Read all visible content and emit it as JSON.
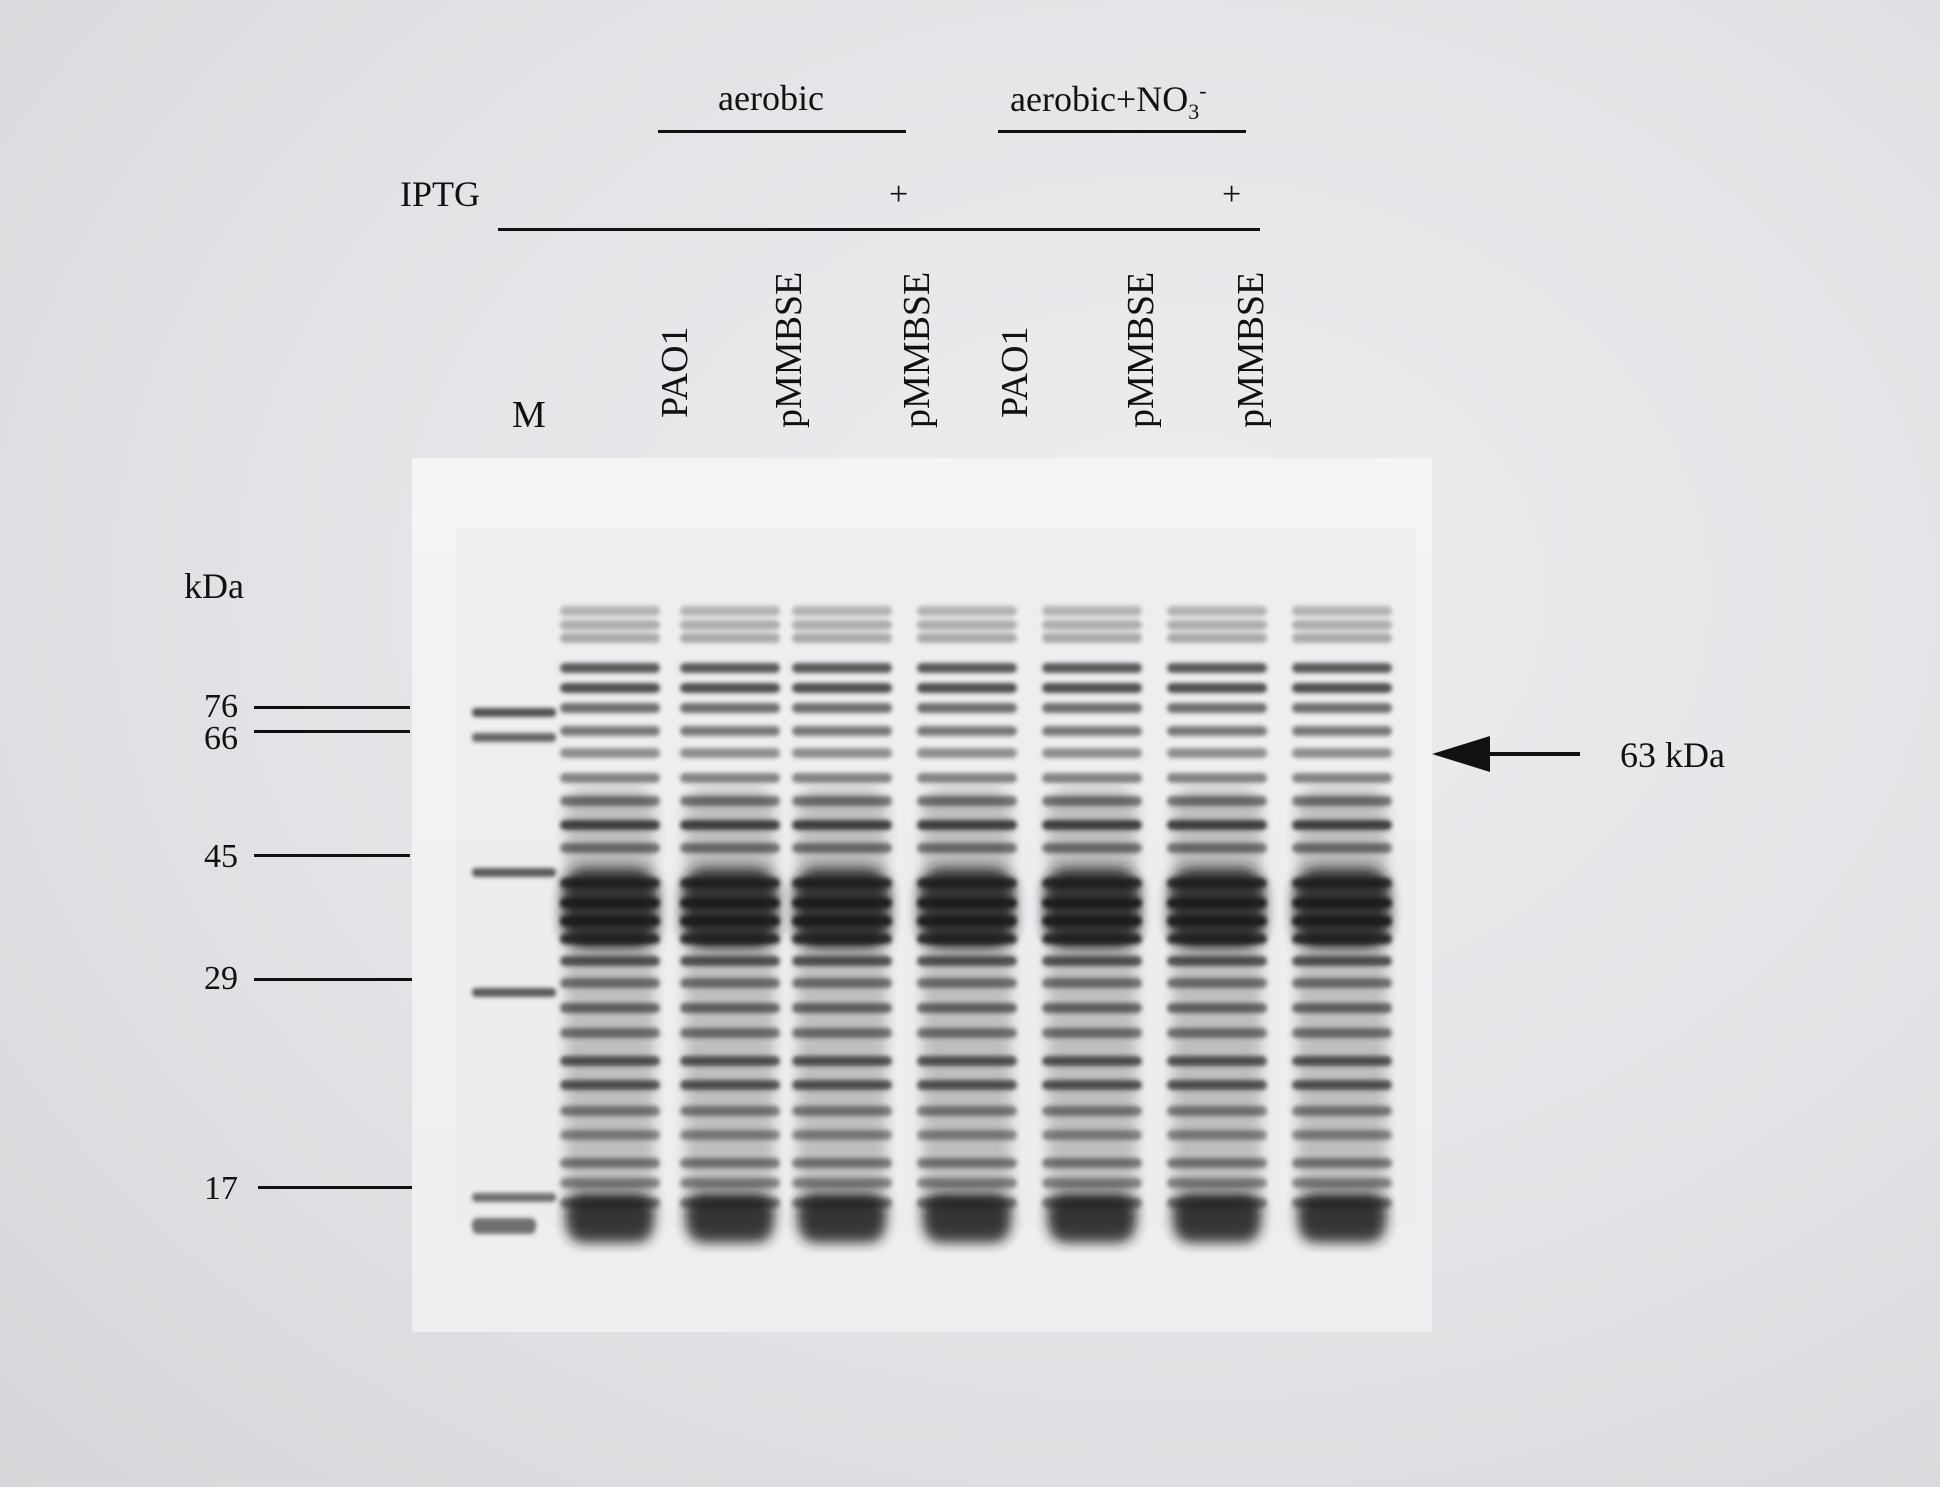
{
  "conditions": [
    {
      "label": "aerobic"
    },
    {
      "label_main": "aerobic+NO",
      "label_sub": "3",
      "label_sup": "-"
    }
  ],
  "iptg_label": "IPTG",
  "iptg_marks": [
    "+",
    "+"
  ],
  "marker_lane_label": "M",
  "lanes": [
    "PAO1",
    "pMMBSE",
    "pMMBSE",
    "PAO1",
    "pMMBSE",
    "pMMBSE"
  ],
  "kda_label": "kDa",
  "markers": [
    "76",
    "66",
    "45",
    "29",
    "17"
  ],
  "arrow_label": "63 kDa",
  "colors": {
    "background": "#e3e4e7",
    "gel": "#f2f2f3",
    "band": "#1a1a1f",
    "ink": "#111111"
  }
}
